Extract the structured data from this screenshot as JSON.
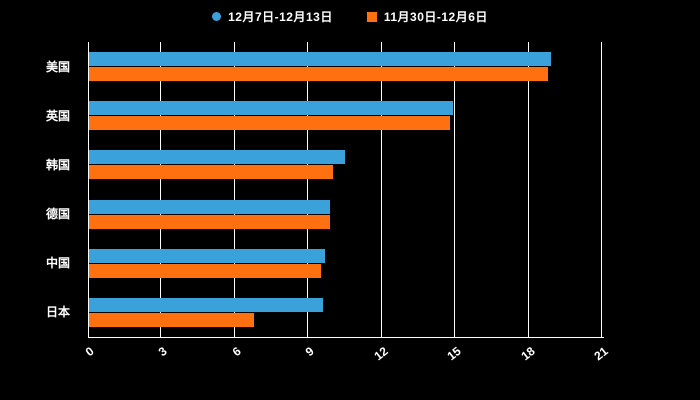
{
  "chart_data": {
    "type": "bar",
    "orientation": "horizontal",
    "title": "",
    "categories": [
      "美国",
      "英国",
      "韩国",
      "德国",
      "中国",
      "日本"
    ],
    "series": [
      {
        "name": "12月7日-12月13日",
        "marker": "circle",
        "color": "#3BA1DB",
        "values": [
          18.9,
          14.9,
          10.5,
          9.9,
          9.7,
          9.6
        ]
      },
      {
        "name": "11月30日-12月6日",
        "marker": "square",
        "color": "#FF7110",
        "values": [
          18.8,
          14.8,
          10.0,
          9.9,
          9.5,
          6.8
        ]
      }
    ],
    "xlim": [
      0,
      21
    ],
    "xticks": [
      "0",
      "3",
      "6",
      "9",
      "12",
      "15",
      "18",
      "21"
    ],
    "grid": true,
    "legend_position": "top",
    "background": "#000000",
    "axis_color": "#FFFFFF",
    "text_color": "#FFFFFF"
  }
}
